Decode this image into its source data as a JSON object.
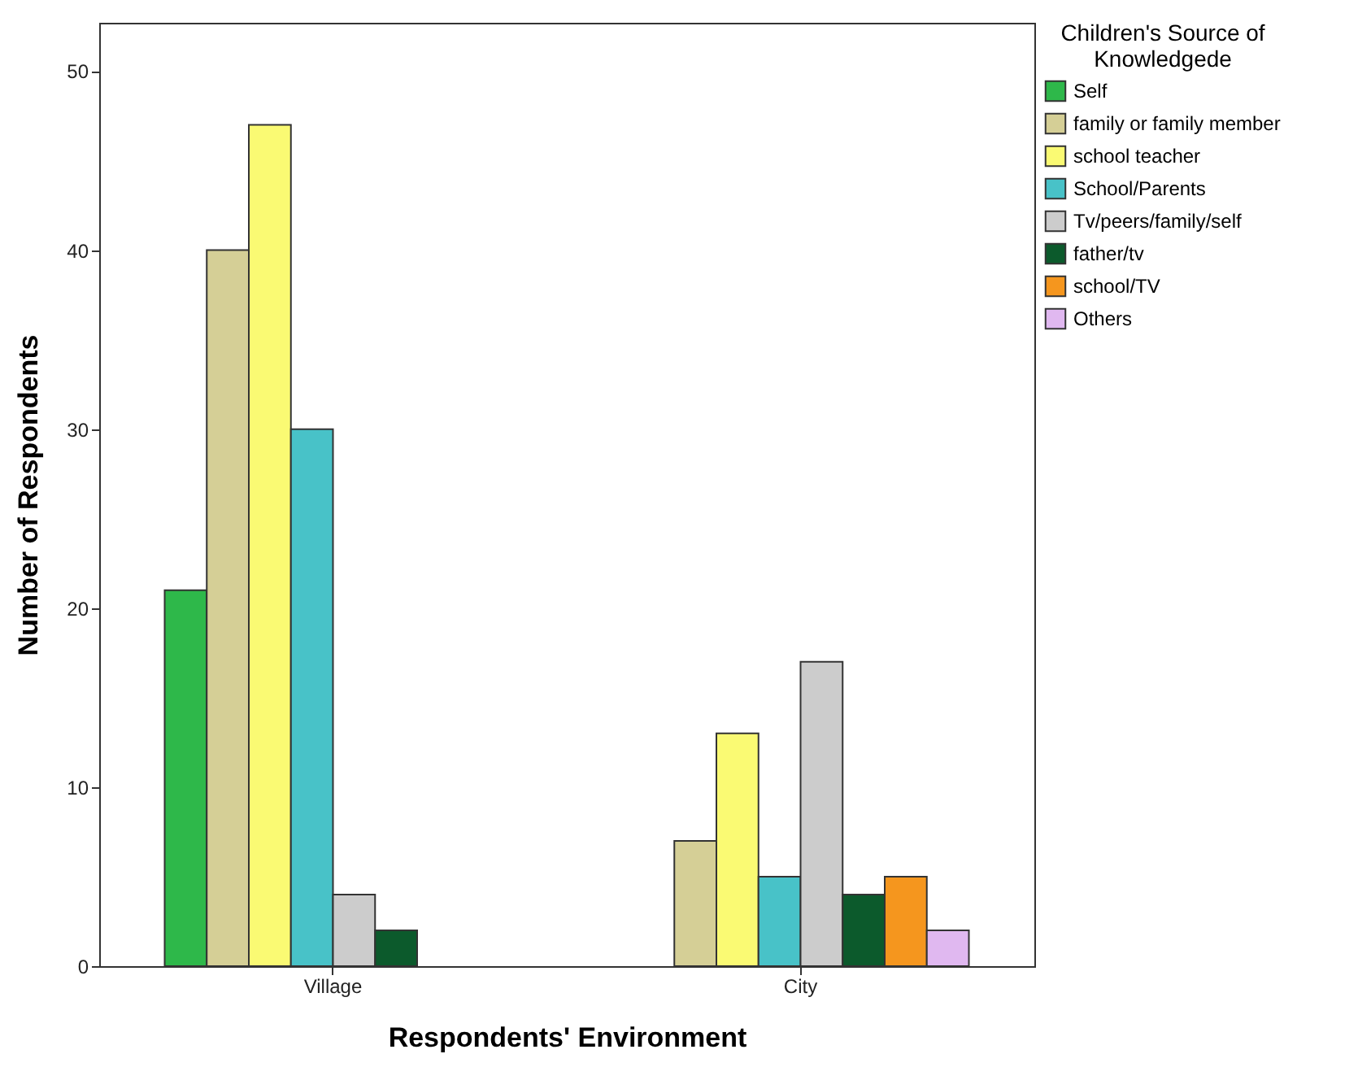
{
  "chart_data": {
    "type": "bar",
    "xlabel": "Respondents' Environment",
    "ylabel": "Number of Respondents",
    "legend_title": "Children's Source of Knowledgede",
    "categories": [
      "Village",
      "City"
    ],
    "series": [
      {
        "name": "Self",
        "color": "#2eb84a",
        "values": [
          21,
          null
        ]
      },
      {
        "name": "family or family member",
        "color": "#d5cf96",
        "values": [
          40,
          7
        ]
      },
      {
        "name": "school teacher",
        "color": "#fafa73",
        "values": [
          47,
          13
        ]
      },
      {
        "name": "School/Parents",
        "color": "#48c2c8",
        "values": [
          30,
          5
        ]
      },
      {
        "name": "Tv/peers/family/self",
        "color": "#cccccc",
        "values": [
          4,
          17
        ]
      },
      {
        "name": "father/tv",
        "color": "#0c5a2c",
        "values": [
          2,
          4
        ]
      },
      {
        "name": "school/TV",
        "color": "#f5961e",
        "values": [
          null,
          5
        ]
      },
      {
        "name": "Others",
        "color": "#e0b8f0",
        "values": [
          null,
          2
        ]
      }
    ],
    "ylim": [
      0,
      52.7
    ],
    "yticks": [
      0,
      10,
      20,
      30,
      40,
      50
    ],
    "grid": false,
    "legend": "top right"
  }
}
